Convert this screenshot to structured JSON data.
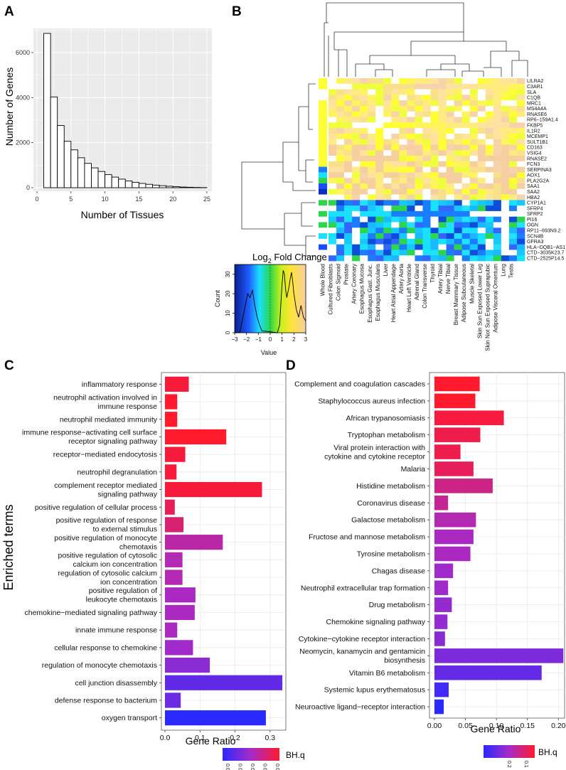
{
  "panel_labels": [
    "A",
    "B",
    "C",
    "D"
  ],
  "chart_data": [
    {
      "panel": "A",
      "type": "bar",
      "title": "",
      "xlabel": "Number of Tissues",
      "ylabel": "Number of Genes",
      "x_ticks": [
        "0",
        "5",
        "10",
        "15",
        "20",
        "25"
      ],
      "y_ticks": [
        "0",
        "2000",
        "4000",
        "6000"
      ],
      "xlim": [
        0,
        25
      ],
      "ylim": [
        0,
        7200
      ],
      "bins": [
        1,
        2,
        3,
        4,
        5,
        6,
        7,
        8,
        9,
        10,
        11,
        12,
        13,
        14,
        15,
        16,
        17,
        18,
        19,
        20,
        21,
        22,
        23,
        24
      ],
      "values": [
        6850,
        4030,
        2760,
        2060,
        1680,
        1330,
        1080,
        880,
        720,
        580,
        470,
        380,
        300,
        240,
        190,
        150,
        115,
        90,
        65,
        45,
        30,
        20,
        12,
        6
      ]
    },
    {
      "panel": "B",
      "type": "heatmap",
      "legend_title": "Log2 Fold Change",
      "legend_title_main": "Log",
      "legend_title_sub": "2",
      "legend_title_rest": " Fold Change",
      "legend_ylabel": "Count",
      "legend_xlabel": "Value",
      "legend_x_ticks": [
        "−3",
        "−2",
        "−1",
        "0",
        "1",
        "2",
        "3"
      ],
      "legend_y_ticks": [
        "0",
        "10",
        "20",
        "30"
      ],
      "genes": [
        "LILRA2",
        "C3AR1",
        "SLA",
        "C1QB",
        "MRC1",
        "MS4A4A",
        "RNASE6",
        "RP6−159A1.4",
        "FKBP5",
        "IL1R2",
        "MCEMP1",
        "SULT1B1",
        "CD163",
        "VSIG4",
        "RNASE2",
        "FCN3",
        "SERPINA3",
        "AOX1",
        "PLA2G2A",
        "SAA1",
        "SAA2",
        "HBA2",
        "CYP1A1",
        "SFRP4",
        "SFRP2",
        "PI16",
        "OGN",
        "RP11−693N9.2",
        "SCN4B",
        "GFRA3",
        "HLA−DQB1−AS1",
        "CTD−3035K23.7",
        "CTD−2525P14.5"
      ],
      "tissues": [
        "Whole Blood",
        "Cultured Fibroblasts",
        "Colon Sigmoid",
        "Prostate",
        "Artery Coronary",
        "Esophagus Mucosa",
        "Esophagus Gast. Junc.",
        "Esophagus Muscularis",
        "Liver",
        "Heart Atrial Appendage",
        "Artery Aorta",
        "Heart Left Ventricle",
        "Adrenal Gland",
        "Colon Transverse",
        "Thyroid",
        "Artery Tibial",
        "Nerve Tibial",
        "Breast Mammary Tissue",
        "Adipose Subcutaneous",
        "Muscle Skeletal",
        "Skin Sun Exposed Lower Leg",
        "Skin Not Sun Exposed Suprapubic",
        "Adipose Visceral Omentum",
        "Lung",
        "Testis"
      ]
    },
    {
      "panel": "C",
      "type": "bar",
      "orientation": "horizontal",
      "xlabel": "Gene Ratio",
      "ylabel": "Enriched terms",
      "x_ticks": [
        "0.0",
        "0.1",
        "0.2",
        "0.3"
      ],
      "xlim": [
        0,
        0.345
      ],
      "legend_title": "BH.q",
      "legend_ticks": [
        "0.025",
        "0.020",
        "0.015",
        "0.010",
        "0.005"
      ],
      "terms": [
        {
          "label": [
            "inflammatory response"
          ],
          "value": 0.068,
          "q": 0.003
        },
        {
          "label": [
            "neutrophil activation involved in",
            "immune response"
          ],
          "value": 0.035,
          "q": 0.002
        },
        {
          "label": [
            "neutrophil mediated immunity"
          ],
          "value": 0.035,
          "q": 0.002
        },
        {
          "label": [
            "immune response−activating cell surface",
            "receptor signaling pathway"
          ],
          "value": 0.175,
          "q": 0.002
        },
        {
          "label": [
            "receptor−mediated endocytosis"
          ],
          "value": 0.058,
          "q": 0.003
        },
        {
          "label": [
            "neutrophil degranulation"
          ],
          "value": 0.033,
          "q": 0.003
        },
        {
          "label": [
            "complement receptor mediated",
            "signaling pathway"
          ],
          "value": 0.277,
          "q": 0.003
        },
        {
          "label": [
            "positive regulation of cellular process"
          ],
          "value": 0.028,
          "q": 0.005
        },
        {
          "label": [
            "positive regulation of response",
            "to external stimulus"
          ],
          "value": 0.053,
          "q": 0.007
        },
        {
          "label": [
            "positive regulation of monocyte",
            "chemotaxis"
          ],
          "value": 0.165,
          "q": 0.011
        },
        {
          "label": [
            "positive regulation of cytosolic",
            "calcium ion concentration"
          ],
          "value": 0.05,
          "q": 0.012
        },
        {
          "label": [
            "regulation of cytosolic calcium",
            "ion concentration"
          ],
          "value": 0.05,
          "q": 0.012
        },
        {
          "label": [
            "positive regulation of",
            "leukocyte chemotaxis"
          ],
          "value": 0.087,
          "q": 0.013
        },
        {
          "label": [
            "chemokine−mediated signaling pathway"
          ],
          "value": 0.085,
          "q": 0.013
        },
        {
          "label": [
            "innate immune response"
          ],
          "value": 0.035,
          "q": 0.013
        },
        {
          "label": [
            "cellular response to chemokine"
          ],
          "value": 0.08,
          "q": 0.014
        },
        {
          "label": [
            "regulation of monocyte chemotaxis"
          ],
          "value": 0.128,
          "q": 0.016
        },
        {
          "label": [
            "cell junction disassembly"
          ],
          "value": 0.335,
          "q": 0.02
        },
        {
          "label": [
            "defense response to bacterium"
          ],
          "value": 0.045,
          "q": 0.019
        },
        {
          "label": [
            "oxygen transport"
          ],
          "value": 0.288,
          "q": 0.025
        }
      ]
    },
    {
      "panel": "D",
      "type": "bar",
      "orientation": "horizontal",
      "xlabel": "Gene Ratio",
      "ylabel": "",
      "x_ticks": [
        "0.00",
        "0.05",
        "0.10",
        "0.15",
        "0.20"
      ],
      "xlim": [
        0,
        0.21
      ],
      "legend_title": "BH.q",
      "legend_ticks": [
        "0.2",
        "0.1"
      ],
      "terms": [
        {
          "label": [
            "Complement and coagulation cascades"
          ],
          "value": 0.073,
          "q": 0.04
        },
        {
          "label": [
            "Staphylococcus aureus infection"
          ],
          "value": 0.066,
          "q": 0.04
        },
        {
          "label": [
            "African trypanosomiasis"
          ],
          "value": 0.112,
          "q": 0.05
        },
        {
          "label": [
            "Tryptophan metabolism"
          ],
          "value": 0.074,
          "q": 0.06
        },
        {
          "label": [
            "Viral protein interaction with",
            "cytokine and cytokine receptor"
          ],
          "value": 0.042,
          "q": 0.06
        },
        {
          "label": [
            "Malaria"
          ],
          "value": 0.063,
          "q": 0.07
        },
        {
          "label": [
            "Histidine metabolism"
          ],
          "value": 0.094,
          "q": 0.1
        },
        {
          "label": [
            "Coronavirus disease"
          ],
          "value": 0.022,
          "q": 0.11
        },
        {
          "label": [
            "Galactose metabolism"
          ],
          "value": 0.067,
          "q": 0.13
        },
        {
          "label": [
            "Fructose and mannose metabolism"
          ],
          "value": 0.063,
          "q": 0.14
        },
        {
          "label": [
            "Tyrosine metabolism"
          ],
          "value": 0.058,
          "q": 0.14
        },
        {
          "label": [
            "Chagas disease"
          ],
          "value": 0.03,
          "q": 0.15
        },
        {
          "label": [
            "Neutrophil extracellular trap formation"
          ],
          "value": 0.022,
          "q": 0.15
        },
        {
          "label": [
            "Drug metabolism"
          ],
          "value": 0.028,
          "q": 0.16
        },
        {
          "label": [
            "Chemokine signaling pathway"
          ],
          "value": 0.021,
          "q": 0.16
        },
        {
          "label": [
            "Cytokine−cytokine receptor interaction"
          ],
          "value": 0.017,
          "q": 0.17
        },
        {
          "label": [
            "Neomycin, kanamycin and gentamicin",
            "biosynthesis"
          ],
          "value": 0.208,
          "q": 0.18
        },
        {
          "label": [
            "Vitamin B6 metabolism"
          ],
          "value": 0.173,
          "q": 0.2
        },
        {
          "label": [
            "Systemic lupus erythematosus"
          ],
          "value": 0.023,
          "q": 0.23
        },
        {
          "label": [
            "Neuroactive ligand−receptor interaction"
          ],
          "value": 0.015,
          "q": 0.25
        }
      ]
    }
  ]
}
